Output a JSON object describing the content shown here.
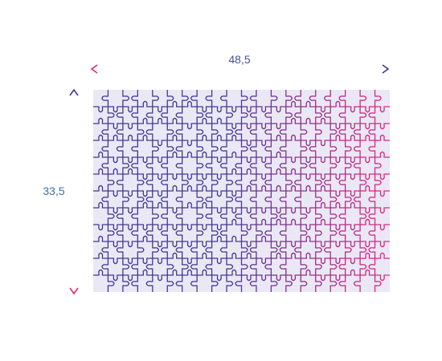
{
  "dimensions": {
    "width_label": "48,5",
    "height_label": "33,5"
  },
  "puzzle": {
    "columns": 20,
    "rows": 12
  },
  "colors": {
    "board_fill": "#ebe8f5",
    "width_text": "#4a4fa0",
    "height_text": "#3d6fb0",
    "gradient_left": "#3f3996",
    "gradient_right": "#e8247e",
    "arrow_start": "#e8247e",
    "arrow_end": "#3f3996"
  }
}
